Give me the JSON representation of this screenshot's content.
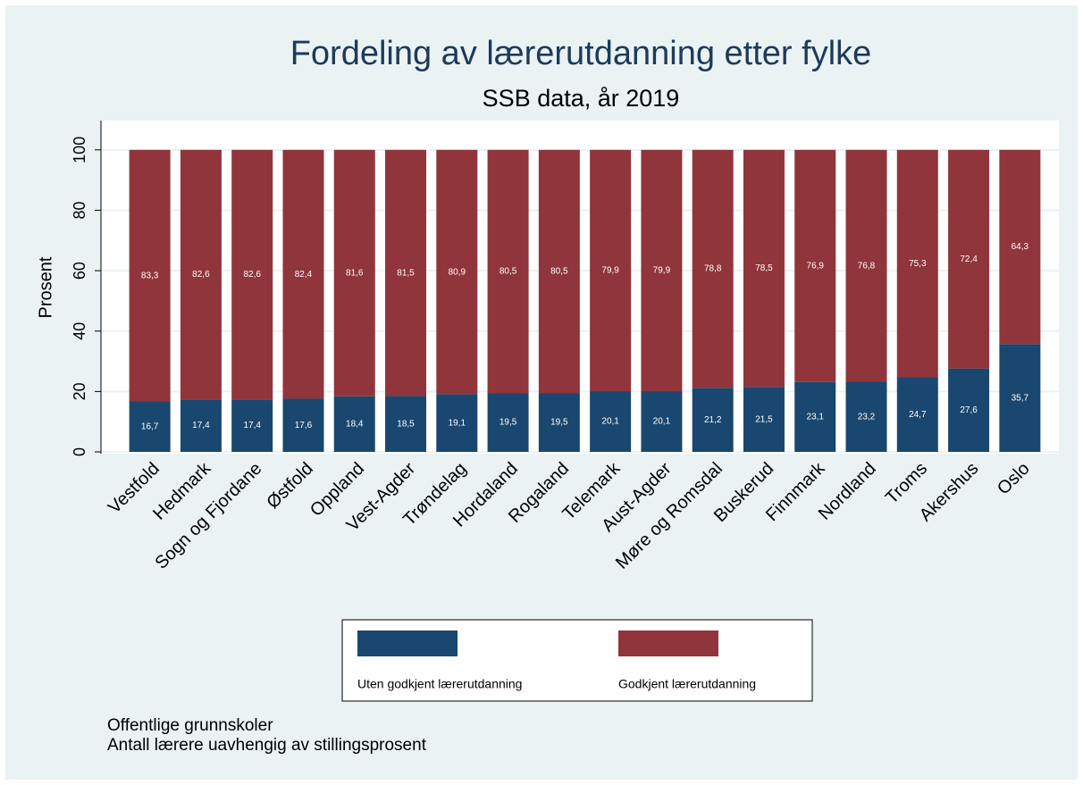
{
  "chart_data": {
    "type": "stacked_bar",
    "title": "Fordeling av lærerutdanning etter fylke",
    "subtitle": "SSB data, år 2019",
    "y_label": "Prosent",
    "categories": [
      "Vestfold",
      "Hedmark",
      "Sogn og Fjordane",
      "Østfold",
      "Oppland",
      "Vest-Agder",
      "Trøndelag",
      "Hordaland",
      "Rogaland",
      "Telemark",
      "Aust-Agder",
      "Møre og Romsdal",
      "Buskerud",
      "Finnmark",
      "Nordland",
      "Troms",
      "Akershus",
      "Oslo"
    ],
    "series": [
      {
        "name": "Uten godkjent lærerutdanning",
        "color": "#1a476f",
        "values": [
          16.7,
          17.4,
          17.4,
          17.6,
          18.4,
          18.5,
          19.1,
          19.5,
          19.5,
          20.1,
          20.1,
          21.2,
          21.5,
          23.1,
          23.2,
          24.7,
          27.6,
          35.7
        ],
        "value_labels": [
          "16,7",
          "17,4",
          "17,4",
          "17,6",
          "18,4",
          "18,5",
          "19,1",
          "19,5",
          "19,5",
          "20,1",
          "20,1",
          "21,2",
          "21,5",
          "23,1",
          "23,2",
          "24,7",
          "27,6",
          "35,7"
        ]
      },
      {
        "name": "Godkjent lærerutdanning",
        "color": "#90353b",
        "values": [
          83.3,
          82.6,
          82.6,
          82.4,
          81.6,
          81.5,
          80.9,
          80.5,
          80.5,
          79.9,
          79.9,
          78.8,
          78.5,
          76.9,
          76.8,
          75.3,
          72.4,
          64.3
        ],
        "value_labels": [
          "83,3",
          "82,6",
          "82,6",
          "82,4",
          "81,6",
          "81,5",
          "80,9",
          "80,5",
          "80,5",
          "79,9",
          "79,9",
          "78,8",
          "78,5",
          "76,9",
          "76,8",
          "75,3",
          "72,4",
          "64,3"
        ]
      }
    ],
    "ylim": [
      0,
      110
    ],
    "yticks": [
      0,
      20,
      40,
      60,
      80,
      100
    ],
    "grid": true,
    "legend": "bottom",
    "notes": [
      "Offentlige grunnskoler",
      "Antall lærere uavhengig av stillingsprosent"
    ]
  }
}
